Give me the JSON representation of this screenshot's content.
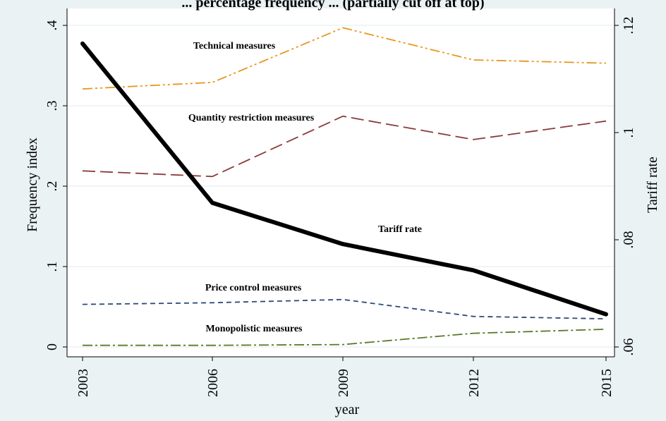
{
  "chart_data": {
    "type": "line",
    "title": "... percentage frequency ... (partially cut off at top)",
    "xlabel": "year",
    "ylabel_left": "Frequency index",
    "ylabel_right": "Tariff rate",
    "x": [
      2003,
      2006,
      2009,
      2012,
      2015
    ],
    "x_tick_labels": [
      "2003",
      "2006",
      "2009",
      "2012",
      "2015"
    ],
    "y_left_ticks": [
      0,
      0.1,
      0.2,
      0.3,
      0.4
    ],
    "y_left_tick_labels": [
      "0",
      ".1",
      ".2",
      ".3",
      ".4"
    ],
    "y_right_ticks": [
      0.06,
      0.08,
      0.1,
      0.12
    ],
    "y_right_tick_labels": [
      ".06",
      ".08",
      ".1",
      ".12"
    ],
    "ylim_left": [
      0,
      0.4
    ],
    "ylim_right": [
      0.06,
      0.12
    ],
    "grid": true,
    "series": [
      {
        "name": "Technical measures",
        "axis": "left",
        "color": "#e8961e",
        "style": "dash-dot-dot",
        "values": [
          0.321,
          0.329,
          0.397,
          0.357,
          0.353
        ]
      },
      {
        "name": "Quantity restriction measures",
        "axis": "left",
        "color": "#8b3a3a",
        "style": "long-dash",
        "values": [
          0.219,
          0.212,
          0.287,
          0.258,
          0.281
        ]
      },
      {
        "name": "Tariff rate",
        "axis": "right",
        "color": "#000000",
        "style": "solid-thick",
        "values": [
          0.1166,
          0.0869,
          0.0792,
          0.0743,
          0.0661
        ]
      },
      {
        "name": "Price control measures",
        "axis": "left",
        "color": "#2a4a7a",
        "style": "dash",
        "values": [
          0.053,
          0.055,
          0.059,
          0.038,
          0.035
        ]
      },
      {
        "name": "Monopolistic measures",
        "axis": "left",
        "color": "#5a7a2a",
        "style": "dash-dot",
        "values": [
          0.002,
          0.002,
          0.003,
          0.017,
          0.022
        ]
      }
    ],
    "series_label_text": {
      "technical": "Technical measures",
      "quantity": "Quantity restriction measures",
      "tariff": "Tariff rate",
      "price": "Price control measures",
      "monopolistic": "Monopolistic measures"
    },
    "colors": {
      "outer_background": "#eaf2f3",
      "plot_background": "#ffffff",
      "gridline": "#eaf2f3"
    }
  }
}
